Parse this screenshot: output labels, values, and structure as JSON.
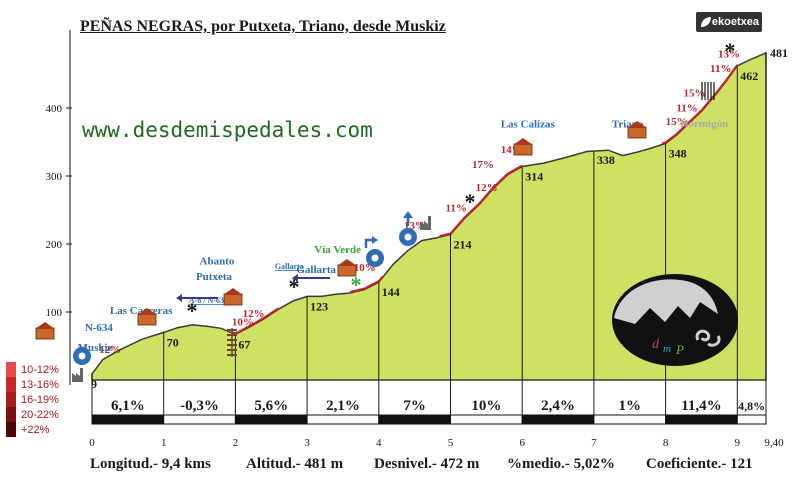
{
  "title": "PEÑAS NEGRAS, por Putxeta, Triano, desde Muskiz",
  "website": "www.desdemispedales.com",
  "brand": "ekoetxea",
  "colors": {
    "profile_fill": "#cfe063",
    "profile_stroke": "#3a3a3a",
    "route_line": "#cc1f2c",
    "grade_label": "#c0262d",
    "place_label": "#2e6db4",
    "green_label": "#3aa63a",
    "gray_label": "#a8a8a8",
    "legend_swatches": [
      "#e84a4a",
      "#c92727",
      "#a81b1b",
      "#7a1010",
      "#4a0606"
    ]
  },
  "legend": {
    "items": [
      {
        "label": "10-12%",
        "color": "#e84a4a"
      },
      {
        "label": "13-16%",
        "color": "#c92727"
      },
      {
        "label": "16-19%",
        "color": "#a81b1b"
      },
      {
        "label": "20-22%",
        "color": "#7a1010"
      },
      {
        "label": "+22%",
        "color": "#4a0606"
      }
    ]
  },
  "footer": {
    "length": "Longitud.- 9,4 kms",
    "altitude": "Altitud.- 481 m",
    "elevation": "Desnivel.- 472 m",
    "average": "%medio.- 5,02%",
    "coefficient": "Coeficiente.- 121"
  },
  "chart_data": {
    "type": "area",
    "title": "PEÑAS NEGRAS, por Putxeta, Triano, desde Muskiz",
    "xlabel": "",
    "ylabel": "",
    "xlim": [
      0,
      9.4
    ],
    "ylim": [
      0,
      481
    ],
    "x_ticks": [
      "0",
      "1",
      "2",
      "3",
      "4",
      "5",
      "6",
      "7",
      "8",
      "9",
      "9,40"
    ],
    "x_tick_values": [
      0,
      1,
      2,
      3,
      4,
      5,
      6,
      7,
      8,
      9,
      9.4
    ],
    "y_ticks": [
      100,
      200,
      300,
      400
    ],
    "grid": false,
    "profile": {
      "x": [
        0,
        0.15,
        0.4,
        0.7,
        1.0,
        1.2,
        1.4,
        1.6,
        1.8,
        2.0,
        2.2,
        2.4,
        2.6,
        2.8,
        3.0,
        3.2,
        3.4,
        3.6,
        3.8,
        4.0,
        4.2,
        4.4,
        4.6,
        4.8,
        5.0,
        5.2,
        5.4,
        5.6,
        5.8,
        6.0,
        6.3,
        6.6,
        6.9,
        7.2,
        7.4,
        7.6,
        7.8,
        8.0,
        8.15,
        8.3,
        8.5,
        8.7,
        8.85,
        9.0,
        9.2,
        9.4
      ],
      "y": [
        9,
        30,
        45,
        60,
        70,
        77,
        81,
        79,
        76,
        67,
        78,
        90,
        104,
        116,
        123,
        123,
        126,
        128,
        133,
        144,
        170,
        190,
        205,
        209,
        214,
        238,
        258,
        282,
        302,
        314,
        319,
        327,
        336,
        338,
        330,
        335,
        341,
        348,
        360,
        375,
        395,
        420,
        440,
        462,
        472,
        481
      ]
    },
    "segments": [
      {
        "km": "0-1",
        "grade": "6,1%"
      },
      {
        "km": "1-2",
        "grade": "-0,3%"
      },
      {
        "km": "2-3",
        "grade": "5,6%"
      },
      {
        "km": "3-4",
        "grade": "2,1%"
      },
      {
        "km": "4-5",
        "grade": "7%"
      },
      {
        "km": "5-6",
        "grade": "10%"
      },
      {
        "km": "6-7",
        "grade": "2,4%"
      },
      {
        "km": "7-8",
        "grade": "1%"
      },
      {
        "km": "8-9",
        "grade": "11,4%"
      },
      {
        "km": "9-9,40",
        "grade": "4,8%"
      }
    ],
    "point_labels": [
      {
        "x": 0,
        "y": 9,
        "text": "9"
      },
      {
        "x": 1.0,
        "y": 70,
        "text": "70"
      },
      {
        "x": 2.0,
        "y": 67,
        "text": "67"
      },
      {
        "x": 3.0,
        "y": 123,
        "text": "123"
      },
      {
        "x": 4.0,
        "y": 144,
        "text": "144"
      },
      {
        "x": 5.0,
        "y": 214,
        "text": "214"
      },
      {
        "x": 6.0,
        "y": 314,
        "text": "314"
      },
      {
        "x": 7.0,
        "y": 338,
        "text": "338"
      },
      {
        "x": 8.0,
        "y": 348,
        "text": "348"
      },
      {
        "x": 9.0,
        "y": 462,
        "text": "462"
      },
      {
        "x": 9.4,
        "y": 481,
        "text": "481"
      }
    ],
    "grade_labels": [
      {
        "x": 0.1,
        "y": 40,
        "text": "12%"
      },
      {
        "x": 2.1,
        "y": 93,
        "text": "12%"
      },
      {
        "x": 1.95,
        "y": 80,
        "text": "10%"
      },
      {
        "x": 3.65,
        "y": 160,
        "text": "10%"
      },
      {
        "x": 4.35,
        "y": 222,
        "text": "13%"
      },
      {
        "x": 4.93,
        "y": 248,
        "text": "11%"
      },
      {
        "x": 5.35,
        "y": 278,
        "text": "12%"
      },
      {
        "x": 5.3,
        "y": 312,
        "text": "17%"
      },
      {
        "x": 5.7,
        "y": 334,
        "text": "14%"
      },
      {
        "x": 8.0,
        "y": 375,
        "text": "15%"
      },
      {
        "x": 8.15,
        "y": 395,
        "text": "11%"
      },
      {
        "x": 8.25,
        "y": 417,
        "text": "15%"
      },
      {
        "x": 8.62,
        "y": 453,
        "text": "11%"
      },
      {
        "x": 8.73,
        "y": 474,
        "text": "13%"
      }
    ],
    "places": [
      {
        "x": -0.1,
        "y": 72,
        "text": "N-634",
        "color": "blue"
      },
      {
        "x": -0.2,
        "y": 43,
        "text": "Muskiz",
        "color": "blue"
      },
      {
        "x": 0.25,
        "y": 97,
        "text": "Las Carreras",
        "color": "blue"
      },
      {
        "x": 1.35,
        "y": 113,
        "text": "A-8 / N-634",
        "color": "blue"
      },
      {
        "x": 1.45,
        "y": 147,
        "text": "Putxeta",
        "color": "blue"
      },
      {
        "x": 1.5,
        "y": 170,
        "text": "Abanto",
        "color": "blue"
      },
      {
        "x": 2.55,
        "y": 163,
        "text": "Gallarta",
        "color": "blue"
      },
      {
        "x": 2.85,
        "y": 157,
        "text": "Gallarta",
        "color": "blue"
      },
      {
        "x": 3.1,
        "y": 187,
        "text": "Vía Verde",
        "color": "green"
      },
      {
        "x": 5.7,
        "y": 371,
        "text": "Las Calizas",
        "color": "blue"
      },
      {
        "x": 7.25,
        "y": 371,
        "text": "Triano",
        "color": "blue"
      },
      {
        "x": 8.2,
        "y": 372,
        "text": "Hormigón",
        "color": "gray"
      }
    ]
  }
}
